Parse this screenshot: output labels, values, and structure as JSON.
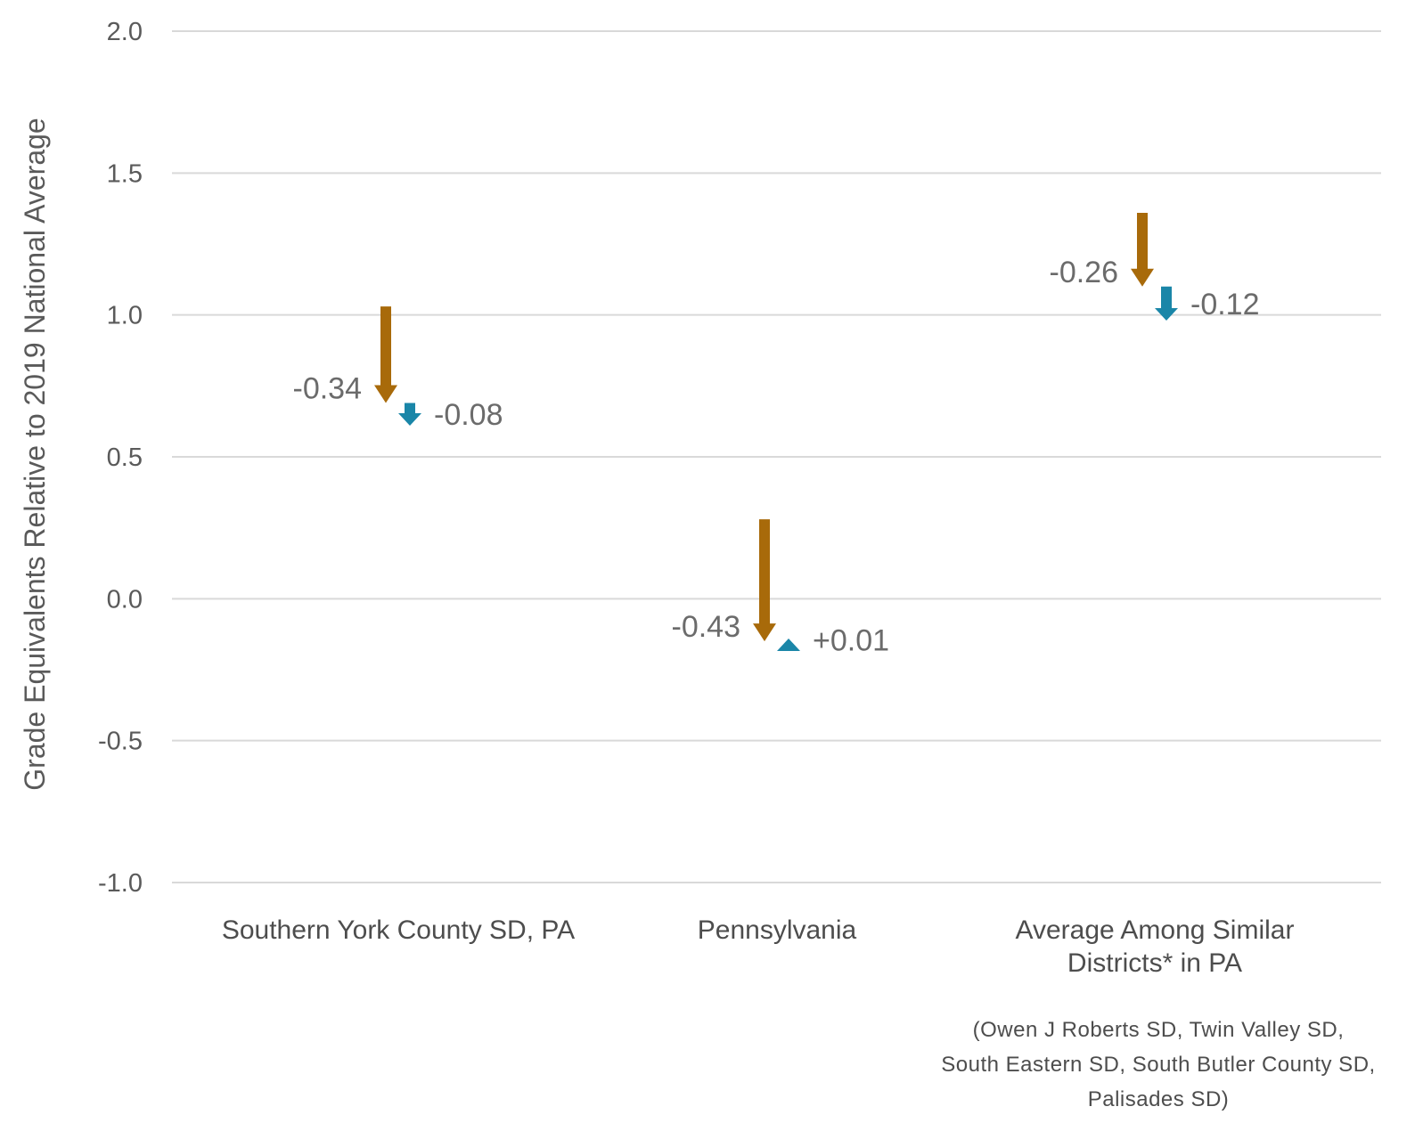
{
  "chart_data": {
    "type": "arrow",
    "ylabel": "Grade Equivalents Relative to 2019 National Average",
    "ylim": [
      -1.0,
      2.0
    ],
    "yticks": [
      "2.0",
      "1.5",
      "1.0",
      "0.5",
      "0.0",
      "-0.5",
      "-1.0"
    ],
    "grid": true,
    "categories": [
      {
        "lines": [
          "Southern York County SD, PA"
        ]
      },
      {
        "lines": [
          "Pennsylvania"
        ]
      },
      {
        "lines": [
          "Average Among Similar",
          "Districts* in PA"
        ]
      }
    ],
    "series": [
      {
        "color": "#a86a0a",
        "points": [
          {
            "start": 1.03,
            "change": -0.34,
            "label": "-0.34"
          },
          {
            "start": 0.28,
            "change": -0.43,
            "label": "-0.43"
          },
          {
            "start": 1.36,
            "change": -0.26,
            "label": "-0.26"
          }
        ]
      },
      {
        "color": "#1a86a8",
        "points": [
          {
            "start": 0.69,
            "change": -0.08,
            "label": "-0.08"
          },
          {
            "start": -0.15,
            "change": 0.01,
            "label": "+0.01"
          },
          {
            "start": 1.1,
            "change": -0.12,
            "label": "-0.12"
          }
        ]
      }
    ],
    "footnote": [
      "(Owen J Roberts SD, Twin Valley SD,",
      "South Eastern SD, South Butler County SD,",
      "Palisades SD)"
    ]
  }
}
